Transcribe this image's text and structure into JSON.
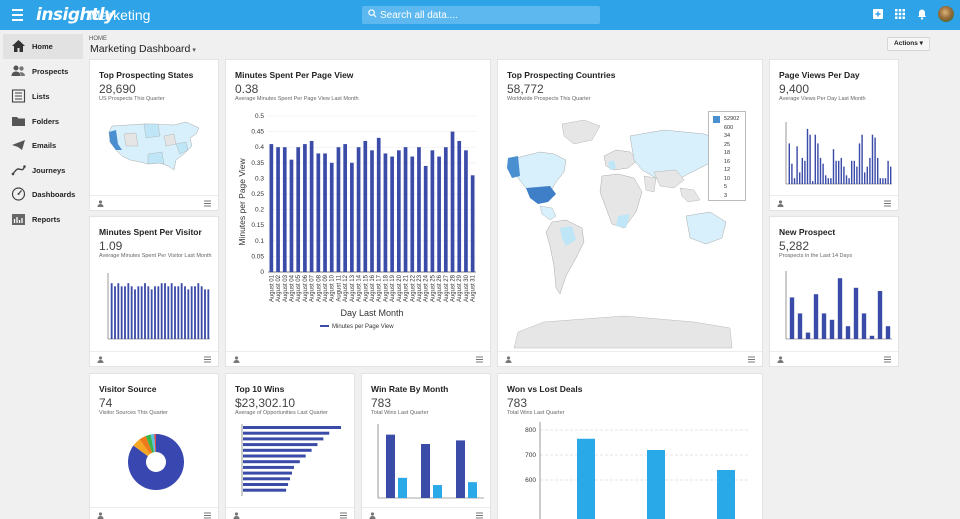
{
  "app": {
    "logo": "insightly",
    "section": "Marketing"
  },
  "search": {
    "placeholder": "Search all data...."
  },
  "nav": [
    {
      "label": "Home",
      "icon": "home-icon"
    },
    {
      "label": "Prospects",
      "icon": "prospects-icon"
    },
    {
      "label": "Lists",
      "icon": "lists-icon"
    },
    {
      "label": "Folders",
      "icon": "folder-icon"
    },
    {
      "label": "Emails",
      "icon": "email-icon"
    },
    {
      "label": "Journeys",
      "icon": "journeys-icon"
    },
    {
      "label": "Dashboards",
      "icon": "dashboard-icon"
    },
    {
      "label": "Reports",
      "icon": "reports-icon"
    }
  ],
  "breadcrumb": "HOME",
  "page_title": "Marketing Dashboard",
  "actions_label": "Actions",
  "colors": {
    "topbar": "#2ea3e8",
    "bar": "#3b4ba8",
    "lightbar": "#29a9e8"
  },
  "cards": {
    "states": {
      "title": "Top Prospecting States",
      "value": "28,690",
      "sub": "US Prospects This Quarter"
    },
    "minutes_view": {
      "title": "Minutes Spent Per Page View",
      "value": "0.38",
      "sub": "Average Minutes Spent Per Page View Last Month"
    },
    "countries": {
      "title": "Top Prospecting Countries",
      "value": "58,772",
      "sub": "Worldwide Prospects This Quarter"
    },
    "page_views": {
      "title": "Page Views Per Day",
      "value": "9,400",
      "sub": "Average Views Per Day Last Month"
    },
    "minutes_visitor": {
      "title": "Minutes Spent Per Visitor",
      "value": "1.09",
      "sub": "Average Minutes Spent Per Visitor Last Month"
    },
    "new_prospect": {
      "title": "New Prospect",
      "value": "5,282",
      "sub": "Prospects in the Last 14 Days"
    },
    "visitor_source": {
      "title": "Visitor Source",
      "value": "74",
      "sub": "Visitor Sources This Quarter"
    },
    "top_wins": {
      "title": "Top 10 Wins",
      "value": "$23,302.10",
      "sub": "Average of Opportunities Last Quarter"
    },
    "win_rate": {
      "title": "Win Rate By Month",
      "value": "783",
      "sub": "Total Wins Last Quarter"
    },
    "won_lost": {
      "title": "Won vs Lost Deals",
      "value": "783",
      "sub": "Total Wins Last Quarter"
    }
  },
  "map_legend": [
    "52902",
    "600",
    "34",
    "25",
    "18",
    "16",
    "12",
    "10",
    "5",
    "3"
  ],
  "chart_data": [
    {
      "type": "bar",
      "title": "Minutes Spent Per Page View",
      "xlabel": "Day Last Month",
      "ylabel": "Minutes per Page View",
      "ylim": [
        0,
        0.5
      ],
      "yticks": [
        "0",
        "0.05",
        "0.1",
        "0.15",
        "0.2",
        "0.25",
        "0.3",
        "0.35",
        "0.4",
        "0.45",
        "0.5"
      ],
      "categories": [
        "August 01",
        "August 02",
        "August 03",
        "August 04",
        "August 05",
        "August 06",
        "August 07",
        "August 08",
        "August 09",
        "August 10",
        "August 11",
        "August 12",
        "August 13",
        "August 14",
        "August 15",
        "August 16",
        "August 17",
        "August 18",
        "August 19",
        "August 20",
        "August 21",
        "August 22",
        "August 23",
        "August 24",
        "August 25",
        "August 26",
        "August 27",
        "August 28",
        "August 29",
        "August 30",
        "August 31"
      ],
      "series": [
        {
          "name": "Minutes per Page View",
          "values": [
            0.41,
            0.4,
            0.4,
            0.36,
            0.4,
            0.41,
            0.42,
            0.38,
            0.38,
            0.35,
            0.4,
            0.41,
            0.35,
            0.4,
            0.42,
            0.39,
            0.43,
            0.38,
            0.37,
            0.39,
            0.4,
            0.37,
            0.4,
            0.34,
            0.39,
            0.37,
            0.4,
            0.45,
            0.42,
            0.39,
            0.31
          ]
        }
      ]
    },
    {
      "type": "pie",
      "title": "Visitor Source",
      "values": [
        85,
        5,
        4,
        3,
        2,
        1
      ],
      "colors": [
        "#3848b0",
        "#f5a623",
        "#f07a1a",
        "#3ab54a",
        "#5bc0de",
        "#e04a4a"
      ]
    },
    {
      "type": "bar",
      "title": "Won vs Lost Deals",
      "ylim": [
        600,
        800
      ],
      "yticks": [
        "600",
        "700",
        "800"
      ],
      "values": [
        765,
        720,
        640
      ]
    }
  ]
}
